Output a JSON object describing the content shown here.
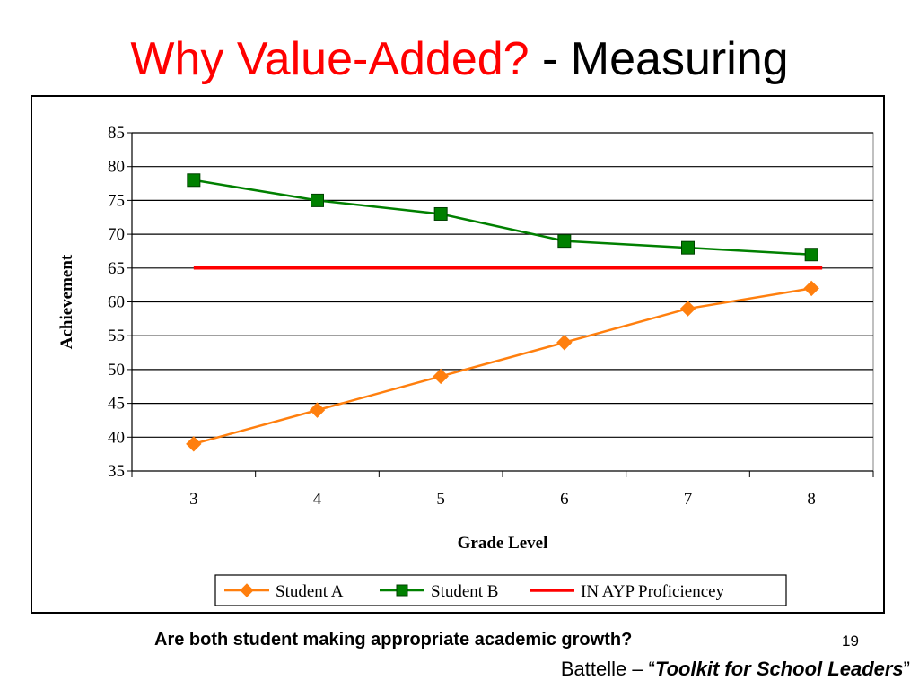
{
  "slide": {
    "title_red": "Why Value-Added?",
    "title_black": " - Measuring",
    "question": "Are both student making appropriate academic growth?",
    "page_number": "19",
    "source_prefix": "Battelle – “",
    "source_title": "Toolkit for School Leaders",
    "source_suffix": "”"
  },
  "colors": {
    "title_accent": "#ff0000",
    "student_a": "#ff7f0e",
    "student_b": "#008000",
    "proficiency": "#ff0000"
  },
  "chart_data": {
    "type": "line",
    "title": "",
    "xlabel": "Grade Level",
    "ylabel": "Achievement",
    "categories": [
      "3",
      "4",
      "5",
      "6",
      "7",
      "8"
    ],
    "ylim": [
      35,
      85
    ],
    "yticks": [
      35,
      40,
      45,
      50,
      55,
      60,
      65,
      70,
      75,
      80,
      85
    ],
    "grid": "horizontal",
    "legend_position": "bottom",
    "series": [
      {
        "name": "Student A",
        "values": [
          39,
          44,
          49,
          54,
          59,
          62
        ],
        "color": "#ff7f0e",
        "marker": "diamond"
      },
      {
        "name": "Student B",
        "values": [
          78,
          75,
          73,
          69,
          68,
          67
        ],
        "color": "#008000",
        "marker": "square"
      },
      {
        "name": "IN AYP Proficiencey",
        "values": [
          65,
          65,
          65,
          65,
          65,
          65
        ],
        "color": "#ff0000",
        "marker": "none"
      }
    ]
  }
}
